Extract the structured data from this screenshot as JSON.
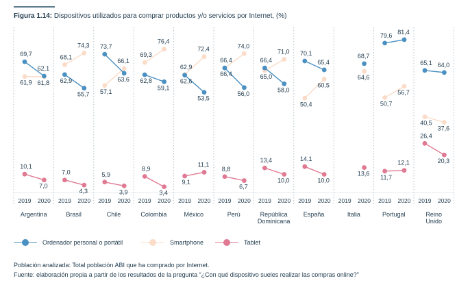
{
  "figure": {
    "label": "Figura 1.14:",
    "title": "Dispositivos utilizados para comprar productos y/o servicios por Internet, (%)"
  },
  "chart_data": {
    "type": "line",
    "years": [
      "2019",
      "2020"
    ],
    "countries": [
      {
        "name": "Argentina",
        "ordenador": [
          69.7,
          62.1
        ],
        "smartphone": [
          61.9,
          61.8
        ],
        "tablet": [
          10.1,
          7.0
        ],
        "labels": {
          "ordenador": [
            "69,7",
            "62,1"
          ],
          "smartphone": [
            "61,9",
            "61,8"
          ],
          "tablet": [
            "10,1",
            "7,0"
          ]
        }
      },
      {
        "name": "Brasil",
        "ordenador": [
          62.9,
          55.7
        ],
        "smartphone": [
          68.1,
          74.3
        ],
        "tablet": [
          7.0,
          4.3
        ],
        "labels": {
          "ordenador": [
            "62,9",
            "55,7"
          ],
          "smartphone": [
            "68,1",
            "74,3"
          ],
          "tablet": [
            "7,0",
            "4,3"
          ]
        }
      },
      {
        "name": "Chile",
        "ordenador": [
          73.7,
          63.6
        ],
        "smartphone": [
          57.1,
          66.1
        ],
        "tablet": [
          5.9,
          3.9
        ],
        "labels": {
          "ordenador": [
            "73,7",
            "63,6"
          ],
          "smartphone": [
            "57,1",
            "66,1"
          ],
          "tablet": [
            "5,9",
            "3,9"
          ]
        }
      },
      {
        "name": "Colombia",
        "ordenador": [
          62.8,
          59.1
        ],
        "smartphone": [
          69.3,
          76.4
        ],
        "tablet": [
          8.9,
          3.4
        ],
        "labels": {
          "ordenador": [
            "62,8",
            "59,1"
          ],
          "smartphone": [
            "69,3",
            "76,4"
          ],
          "tablet": [
            "8,9",
            "3,4"
          ]
        }
      },
      {
        "name": "México",
        "ordenador": [
          62.6,
          53.5
        ],
        "smartphone": [
          62.9,
          72.4
        ],
        "tablet": [
          9.1,
          11.1
        ],
        "labels": {
          "ordenador": [
            "62,6",
            "53,5"
          ],
          "smartphone": [
            "62,9",
            "72,4"
          ],
          "tablet": [
            "9,1",
            "11,1"
          ]
        }
      },
      {
        "name": "Perú",
        "ordenador": [
          66.4,
          56.0
        ],
        "smartphone": [
          66.4,
          74.0
        ],
        "tablet": [
          8.8,
          6.7
        ],
        "labels": {
          "ordenador": [
            "66,4",
            "56,0"
          ],
          "smartphone": [
            "66,4",
            "74,0"
          ],
          "tablet": [
            "8,8",
            "6,7"
          ]
        }
      },
      {
        "name": "República Dominicana",
        "ordenador": [
          66.4,
          58.0
        ],
        "smartphone": [
          65.0,
          71.0
        ],
        "tablet": [
          13.4,
          10.0
        ],
        "labels": {
          "ordenador": [
            "66,4",
            "58,0"
          ],
          "smartphone": [
            "65,0",
            "71,0"
          ],
          "tablet": [
            "13,4",
            "10,0"
          ]
        }
      },
      {
        "name": "España",
        "ordenador": [
          70.1,
          65.4
        ],
        "smartphone": [
          50.4,
          60.5
        ],
        "tablet": [
          14.1,
          10.0
        ],
        "labels": {
          "ordenador": [
            "70,1",
            "65,4"
          ],
          "smartphone": [
            "50,4",
            "60,5"
          ],
          "tablet": [
            "14,1",
            "10,0"
          ]
        }
      },
      {
        "name": "Italia",
        "ordenador": [
          null,
          68.7
        ],
        "smartphone": [
          null,
          64.6
        ],
        "tablet": [
          null,
          13.6
        ],
        "labels": {
          "ordenador": [
            "",
            "68,7"
          ],
          "smartphone": [
            "",
            "64,6"
          ],
          "tablet": [
            "",
            "13,6"
          ]
        }
      },
      {
        "name": "Portugal",
        "ordenador": [
          79.6,
          81.4
        ],
        "smartphone": [
          50.7,
          56.7
        ],
        "tablet": [
          11.7,
          12.1
        ],
        "labels": {
          "ordenador": [
            "79,6",
            "81,4"
          ],
          "smartphone": [
            "50,7",
            "56,7"
          ],
          "tablet": [
            "11,7",
            "12,1"
          ]
        }
      },
      {
        "name": "Reino Unido",
        "ordenador": [
          65.1,
          64.0
        ],
        "smartphone": [
          40.5,
          37.6
        ],
        "tablet": [
          26.4,
          20.3
        ],
        "labels": {
          "ordenador": [
            "65,1",
            "64,0"
          ],
          "smartphone": [
            "40,5",
            "37,6"
          ],
          "tablet": [
            "26,4",
            "20,3"
          ]
        }
      }
    ],
    "series": [
      {
        "key": "ordenador",
        "name": "Ordenador personal o portátil",
        "color": "#4a90c2"
      },
      {
        "key": "smartphone",
        "name": "Smartphone",
        "color": "#fbdcc8"
      },
      {
        "key": "tablet",
        "name": "Tablet",
        "color": "#e07a93"
      }
    ],
    "ylim": [
      0,
      85
    ],
    "legend_position": "bottom",
    "grid": false
  },
  "notes": {
    "population": "Población analizada: Total población ABI que ha comprado por Internet.",
    "source": "Fuente: elaboración propia a partir de los resultados de la pregunta “¿Con qué dispositivo sueles realizar las compras online?”"
  }
}
